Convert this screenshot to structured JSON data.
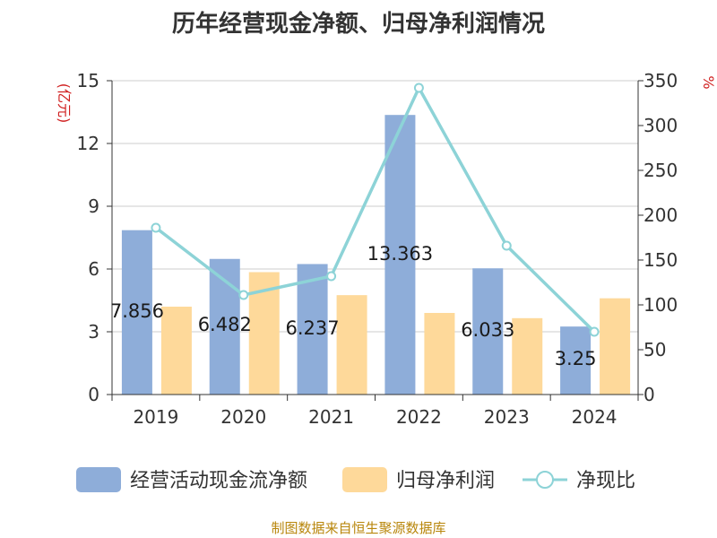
{
  "title": "历年经营现金净额、归母净利润情况",
  "source": "制图数据来自恒生聚源数据库",
  "chart_data": {
    "type": "bar",
    "categories": [
      "2019",
      "2020",
      "2021",
      "2022",
      "2023",
      "2024"
    ],
    "series": [
      {
        "name": "经营活动现金流净额",
        "kind": "bar",
        "axis": "left",
        "color": "#8eadd9",
        "values": [
          7.856,
          6.482,
          6.237,
          13.363,
          6.033,
          3.25
        ]
      },
      {
        "name": "归母净利润",
        "kind": "bar",
        "axis": "left",
        "color": "#fed99a",
        "values": [
          4.2,
          5.85,
          4.75,
          3.9,
          3.65,
          4.6
        ]
      },
      {
        "name": "净现比",
        "kind": "line",
        "axis": "right",
        "color": "#8dd3d7",
        "values": [
          186,
          111,
          132,
          342,
          166,
          70
        ]
      }
    ],
    "data_labels": [
      "7.856",
      "6.482",
      "6.237",
      "13.363",
      "6.033",
      "3.25"
    ],
    "y_left": {
      "label": "(亿元)",
      "range": [
        0,
        15
      ],
      "ticks": [
        "0",
        "3",
        "6",
        "9",
        "12",
        "15"
      ]
    },
    "y_right": {
      "label": "%",
      "range": [
        0,
        350
      ],
      "ticks": [
        "0",
        "50",
        "100",
        "150",
        "200",
        "250",
        "300",
        "350"
      ]
    },
    "grid": true,
    "legend": "bottom"
  }
}
